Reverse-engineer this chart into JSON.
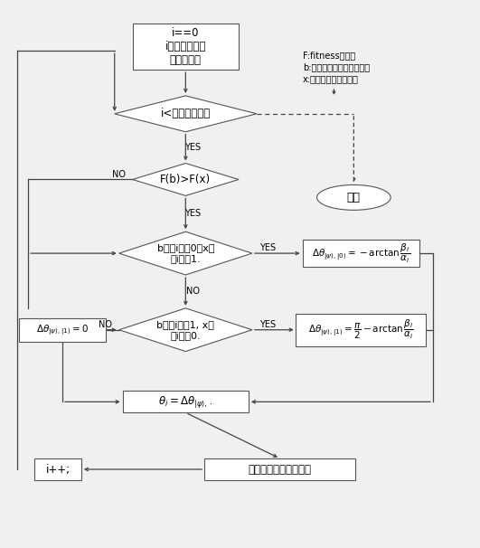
{
  "bg_color": "#f0f0f0",
  "node1_text": "i==0\ni为个体中量子\n比特串下标",
  "node2_text": "i<量子比特总数",
  "node3_text": "F(b)>F(x)",
  "node4_text": "b的第i位为0且x的\n第i位为1.",
  "node5_text": "b的第i位为1, x的\n第i位为0.",
  "node10_text": "按照旋转角度进行进化",
  "node11_text": "i++;",
  "stop_label": "停止",
  "legend1": "F:fitness函数；",
  "legend2": "b:当前最优个体二进制串；",
  "legend3": "x:当前个体二进制串；"
}
